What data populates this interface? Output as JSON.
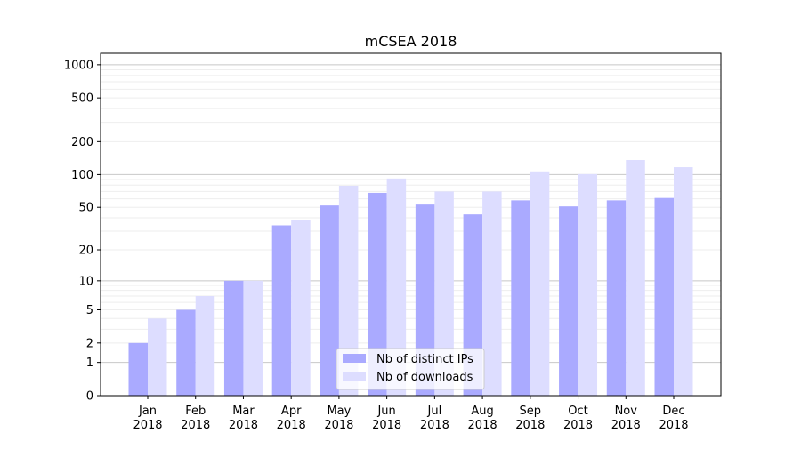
{
  "chart_data": {
    "type": "bar",
    "title": "mCSEA 2018",
    "xlabel": "",
    "ylabel": "",
    "yscale": "log(x+1)",
    "ylim": [
      0,
      1270
    ],
    "yticks": [
      0,
      1,
      2,
      5,
      10,
      20,
      50,
      100,
      200,
      500,
      1000
    ],
    "grid": true,
    "legend_position": "lower-center",
    "categories": [
      "Jan\n2018",
      "Feb\n2018",
      "Mar\n2018",
      "Apr\n2018",
      "May\n2018",
      "Jun\n2018",
      "Jul\n2018",
      "Aug\n2018",
      "Sep\n2018",
      "Oct\n2018",
      "Nov\n2018",
      "Dec\n2018"
    ],
    "series": [
      {
        "name": "Nb of distinct IPs",
        "color": "#aaaaff",
        "values": [
          2,
          5,
          10,
          34,
          52,
          68,
          53,
          43,
          58,
          51,
          58,
          61
        ]
      },
      {
        "name": "Nb of downloads",
        "color": "#ddddff",
        "values": [
          4,
          7,
          10,
          38,
          79,
          92,
          70,
          70,
          107,
          101,
          136,
          117
        ]
      }
    ]
  }
}
